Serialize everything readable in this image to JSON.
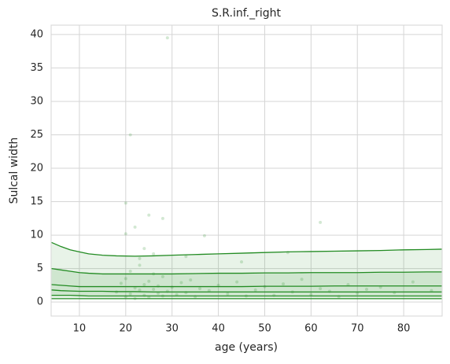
{
  "chart_data": {
    "type": "line",
    "title": "S.R.inf._right",
    "x_label": "age (years)",
    "y_label": "Sulcal width",
    "xlim": [
      3.9,
      88.3
    ],
    "ylim": [
      -2.1,
      41.4
    ],
    "xticks": [
      10,
      20,
      30,
      40,
      50,
      60,
      70,
      80
    ],
    "yticks": [
      0,
      5,
      10,
      15,
      20,
      25,
      30,
      35,
      40
    ],
    "grid": true,
    "x": [
      4,
      6,
      8,
      10,
      12,
      15,
      18,
      22,
      26,
      30,
      35,
      40,
      45,
      50,
      55,
      60,
      65,
      70,
      75,
      80,
      85,
      88.2
    ],
    "series": [
      {
        "color": "#228b22",
        "values": [
          8.9,
          8.3,
          7.8,
          7.5,
          7.2,
          7.0,
          6.9,
          6.85,
          6.9,
          7.0,
          7.1,
          7.2,
          7.3,
          7.4,
          7.5,
          7.55,
          7.6,
          7.65,
          7.7,
          7.8,
          7.85,
          7.9
        ]
      },
      {
        "color": "#228b22",
        "values": [
          5.0,
          4.8,
          4.6,
          4.4,
          4.3,
          4.2,
          4.2,
          4.2,
          4.2,
          4.2,
          4.25,
          4.3,
          4.3,
          4.35,
          4.35,
          4.4,
          4.4,
          4.4,
          4.45,
          4.45,
          4.5,
          4.5
        ]
      },
      {
        "color": "#228b22",
        "values": [
          2.6,
          2.5,
          2.4,
          2.3,
          2.3,
          2.3,
          2.3,
          2.3,
          2.3,
          2.3,
          2.3,
          2.3,
          2.3,
          2.35,
          2.35,
          2.35,
          2.4,
          2.4,
          2.4,
          2.4,
          2.4,
          2.4
        ]
      },
      {
        "color": "#228b22",
        "values": [
          1.8,
          1.7,
          1.65,
          1.6,
          1.6,
          1.6,
          1.55,
          1.55,
          1.5,
          1.5,
          1.5,
          1.5,
          1.5,
          1.5,
          1.5,
          1.5,
          1.5,
          1.5,
          1.5,
          1.5,
          1.5,
          1.5
        ]
      },
      {
        "color": "#228b22",
        "values": [
          1.0,
          1.0,
          1.0,
          0.95,
          0.9,
          0.9,
          0.9,
          0.9,
          0.9,
          0.9,
          0.9,
          0.9,
          0.9,
          0.9,
          0.9,
          0.9,
          0.9,
          0.9,
          0.9,
          0.9,
          0.9,
          0.9
        ]
      },
      {
        "color": "#228b22",
        "values": [
          0.5,
          0.5,
          0.5,
          0.5,
          0.5,
          0.5,
          0.5,
          0.5,
          0.5,
          0.5,
          0.5,
          0.5,
          0.5,
          0.5,
          0.5,
          0.5,
          0.5,
          0.5,
          0.5,
          0.5,
          0.5,
          0.5
        ]
      }
    ],
    "scatter": {
      "color": "#228b22",
      "x": [
        18,
        19,
        20,
        20,
        21,
        21,
        22,
        22,
        23,
        23,
        24,
        24,
        25,
        25,
        26,
        26,
        27,
        27,
        28,
        28,
        29,
        30,
        31,
        32,
        33,
        34,
        35,
        36,
        38,
        40,
        42,
        44,
        46,
        48,
        50,
        52,
        54,
        56,
        58,
        60,
        62,
        64,
        66,
        68,
        70,
        72,
        75,
        78,
        82,
        86,
        20,
        21,
        29,
        62,
        20,
        25,
        28,
        22,
        37,
        23,
        26,
        24,
        55,
        45,
        33
      ],
      "y": [
        1.5,
        2.8,
        0.8,
        3.5,
        1.2,
        4.6,
        2.1,
        0.5,
        1.8,
        5.5,
        1.0,
        2.6,
        3.1,
        0.7,
        1.9,
        4.2,
        1.3,
        2.4,
        0.9,
        3.8,
        1.6,
        2.2,
        1.1,
        2.9,
        1.4,
        3.3,
        0.8,
        2.0,
        1.7,
        2.5,
        1.2,
        3.0,
        0.9,
        1.8,
        2.3,
        1.0,
        2.7,
        1.5,
        3.4,
        1.1,
        2.0,
        1.6,
        0.8,
        2.6,
        1.3,
        1.9,
        2.2,
        1.4,
        3.0,
        1.7,
        14.8,
        25.0,
        39.5,
        11.9,
        10.2,
        13.0,
        12.5,
        11.2,
        9.9,
        6.5,
        7.2,
        8.0,
        7.4,
        6.0,
        6.8
      ]
    }
  }
}
